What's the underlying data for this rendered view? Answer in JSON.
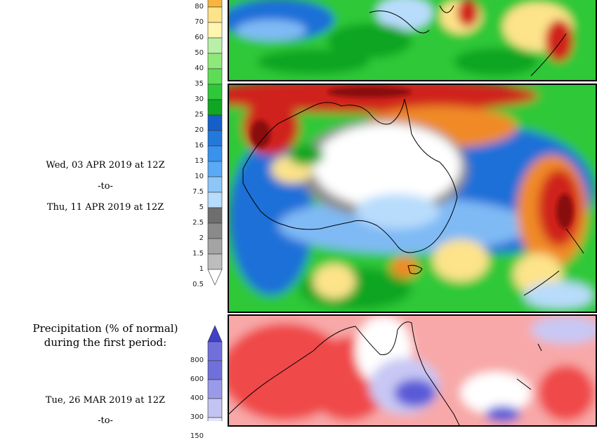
{
  "precip_legend": {
    "ticks": [
      "80",
      "70",
      "60",
      "50",
      "40",
      "35",
      "30",
      "25",
      "20",
      "16",
      "13",
      "10",
      "7.5",
      "5",
      "2.5",
      "2",
      "1.5",
      "1",
      "0.5"
    ],
    "colors": [
      "#f7b53e",
      "#fde38a",
      "#fff5b0",
      "#b9f0a8",
      "#8fe87a",
      "#5fdc55",
      "#2ec838",
      "#10a523",
      "#1560c8",
      "#2378dc",
      "#3a92ee",
      "#5aaaf5",
      "#8ec6f8",
      "#b8dcfb",
      "#6e6e6e",
      "#8a8a8a",
      "#a4a4a4",
      "#bdbdbd",
      "#ffffff"
    ]
  },
  "period2": {
    "start": "Wed, 03 APR 2019 at 12Z",
    "sep": "-to-",
    "end": "Thu, 11 APR 2019 at 12Z"
  },
  "normal_section": {
    "heading_line1": "Precipitation (% of normal)",
    "heading_line2": "during the first period:",
    "start": "Tue, 26 MAR 2019 at 12Z",
    "sep": "-to-",
    "ticks": [
      "800",
      "600",
      "400",
      "300",
      "150"
    ],
    "colors": [
      "#4040c8",
      "#7070dc",
      "#9a9ae8",
      "#c4c4f2",
      "#e4e4fa"
    ]
  },
  "map_palette": {
    "ocean_green": "#2ec838",
    "deep_green": "#10a523",
    "blue": "#1f6fd8",
    "light_blue": "#7fbaf5",
    "pale_blue": "#b8dcfb",
    "gray": "#8c8c8c",
    "land_dry": "#ffffff",
    "yellow": "#fde38a",
    "orange": "#f08a28",
    "red": "#d0201a",
    "dark_red": "#8a1010",
    "anomaly_red": "#f04a4a",
    "anomaly_pink": "#f8a8a8",
    "anomaly_blue": "#5a5ad8",
    "anomaly_lightblue": "#c8c8f4"
  },
  "icons": [
    "colorbar-triangle-down-icon",
    "colorbar-triangle-up-icon"
  ]
}
